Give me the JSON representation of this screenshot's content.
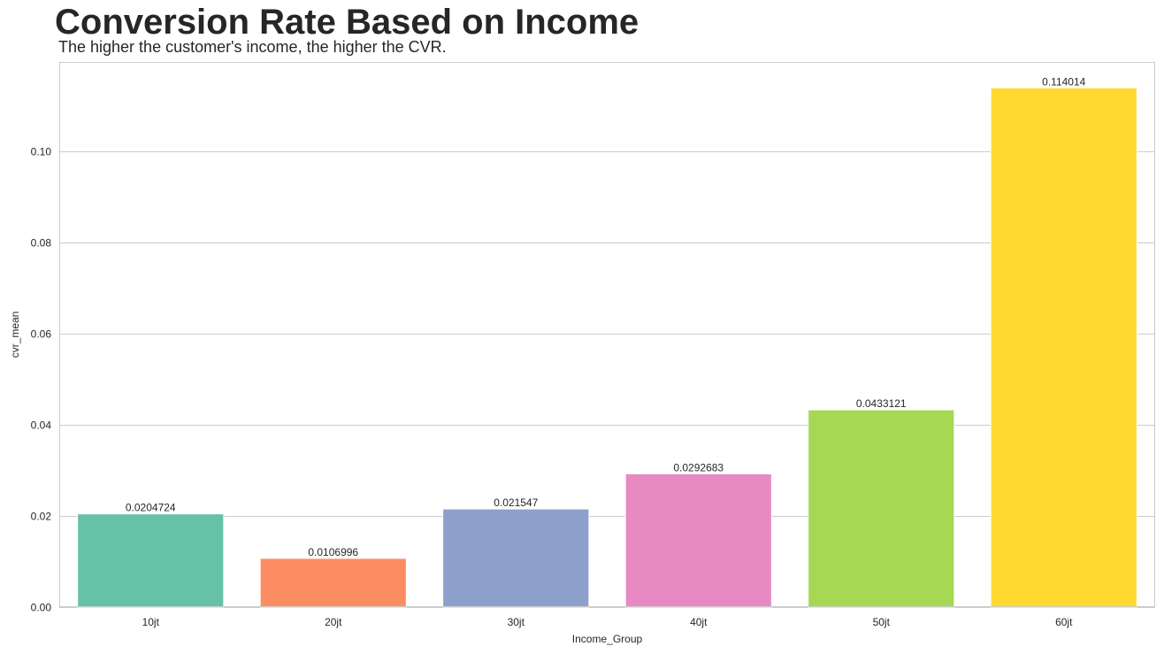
{
  "chart_data": {
    "type": "bar",
    "title": "Conversion Rate Based on Income",
    "subtitle": "The higher the customer's income, the higher the CVR.",
    "xlabel": "Income_Group",
    "ylabel": "cvr_mean",
    "categories": [
      "10jt",
      "20jt",
      "30jt",
      "40jt",
      "50jt",
      "60jt"
    ],
    "values": [
      0.0204724,
      0.0106996,
      0.021547,
      0.0292683,
      0.0433121,
      0.114014
    ],
    "value_labels": [
      "0.0204724",
      "0.0106996",
      "0.021547",
      "0.0292683",
      "0.0433121",
      "0.114014"
    ],
    "colors": [
      "#66c2a5",
      "#fc8d62",
      "#8da0cb",
      "#e78ac3",
      "#a6d854",
      "#ffd92f"
    ],
    "yticks": [
      0.0,
      0.02,
      0.04,
      0.06,
      0.08,
      0.1
    ],
    "ytick_labels": [
      "0.00",
      "0.02",
      "0.04",
      "0.06",
      "0.08",
      "0.10"
    ],
    "ylim": [
      0,
      0.1197
    ],
    "grid": "horizontal",
    "legend": false
  }
}
